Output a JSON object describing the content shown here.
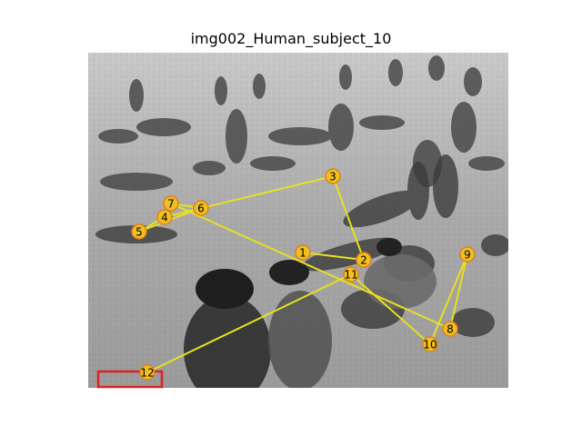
{
  "figure": {
    "title": "img002_Human_subject_10"
  },
  "fixations": [
    {
      "label": "1"
    },
    {
      "label": "2"
    },
    {
      "label": "3"
    },
    {
      "label": "4"
    },
    {
      "label": "5"
    },
    {
      "label": "6"
    },
    {
      "label": "7"
    },
    {
      "label": "8"
    },
    {
      "label": "9"
    },
    {
      "label": "10"
    },
    {
      "label": "11"
    },
    {
      "label": "12"
    }
  ],
  "colors": {
    "scanpath_line": "#e8e020",
    "fixation_fill": "#f0c020",
    "fixation_edge": "#e08020",
    "highlight_box": "#e02020"
  }
}
